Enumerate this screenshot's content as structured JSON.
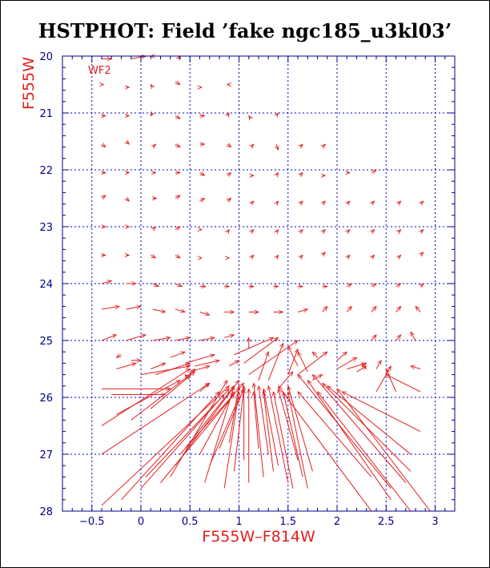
{
  "chart_data": {
    "type": "vector-field",
    "title": "HSTPHOT: Field ’fake ngc185_u3kl03’",
    "panel_label": "WF2",
    "xlabel": "F555W–F814W",
    "ylabel": "F555W",
    "xlim": [
      -0.8,
      3.2
    ],
    "ylim": [
      28,
      20
    ],
    "y_inverted": true,
    "grid": true,
    "x_ticks": [
      -0.5,
      0,
      0.5,
      1,
      1.5,
      2,
      2.5,
      3
    ],
    "x_tick_labels": [
      "−0.5",
      "0",
      "0.5",
      "1",
      "1.5",
      "2",
      "2.5",
      "3"
    ],
    "y_ticks": [
      20,
      21,
      22,
      23,
      24,
      25,
      26,
      27,
      28
    ],
    "y_tick_labels": [
      "20",
      "21",
      "22",
      "23",
      "24",
      "25",
      "26",
      "27",
      "28"
    ],
    "colors": {
      "axis": "#00008b",
      "grid": "#0000cd",
      "vectors": "#e02020",
      "labels": "#e02020"
    },
    "vectors_note": "each vector: [x_start, y_start, x_end, y_end] in data units (color, magnitude)",
    "vectors": [
      [
        -0.4,
        20.05,
        -0.3,
        20.05
      ],
      [
        -0.1,
        20.05,
        0.05,
        20.0
      ],
      [
        0.12,
        20.0,
        0.1,
        20.0
      ],
      [
        0.38,
        20.05,
        0.4,
        20.0
      ],
      [
        -0.4,
        20.5,
        -0.38,
        20.5
      ],
      [
        -0.15,
        20.55,
        -0.12,
        20.55
      ],
      [
        0.12,
        20.55,
        0.1,
        20.5
      ],
      [
        0.35,
        20.45,
        0.4,
        20.5
      ],
      [
        0.6,
        20.55,
        0.62,
        20.55
      ],
      [
        0.9,
        20.5,
        0.88,
        20.5
      ],
      [
        -0.4,
        21.05,
        -0.36,
        21.05
      ],
      [
        -0.15,
        21.05,
        -0.12,
        21.05
      ],
      [
        0.12,
        21.0,
        0.1,
        21.05
      ],
      [
        0.35,
        21.05,
        0.4,
        21.1
      ],
      [
        0.6,
        21.05,
        0.65,
        21.05
      ],
      [
        0.88,
        21.05,
        0.9,
        21.0
      ],
      [
        1.12,
        21.1,
        1.1,
        21.05
      ],
      [
        1.38,
        21.05,
        1.4,
        21.0
      ],
      [
        -0.4,
        21.55,
        -0.36,
        21.6
      ],
      [
        -0.15,
        21.5,
        -0.12,
        21.55
      ],
      [
        0.12,
        21.6,
        0.15,
        21.55
      ],
      [
        0.35,
        21.55,
        0.4,
        21.6
      ],
      [
        0.6,
        21.55,
        0.65,
        21.55
      ],
      [
        0.88,
        21.55,
        0.92,
        21.6
      ],
      [
        1.12,
        21.6,
        1.15,
        21.55
      ],
      [
        1.38,
        21.55,
        1.4,
        21.65
      ],
      [
        1.62,
        21.6,
        1.65,
        21.55
      ],
      [
        1.85,
        21.6,
        1.88,
        21.55
      ],
      [
        -0.4,
        22.05,
        -0.36,
        22.05
      ],
      [
        -0.15,
        22.05,
        -0.12,
        22.05
      ],
      [
        0.12,
        22.05,
        0.15,
        22.05
      ],
      [
        0.35,
        22.05,
        0.4,
        22.05
      ],
      [
        0.6,
        22.05,
        0.65,
        22.1
      ],
      [
        0.88,
        22.1,
        0.92,
        22.05
      ],
      [
        1.12,
        22.1,
        1.15,
        22.1
      ],
      [
        1.38,
        22.1,
        1.4,
        22.05
      ],
      [
        1.62,
        22.1,
        1.65,
        22.05
      ],
      [
        1.85,
        22.1,
        1.88,
        22.1
      ],
      [
        2.1,
        22.05,
        2.13,
        22.05
      ],
      [
        2.35,
        22.05,
        2.4,
        22.0
      ],
      [
        -0.4,
        22.5,
        -0.36,
        22.45
      ],
      [
        -0.15,
        22.5,
        -0.12,
        22.55
      ],
      [
        0.12,
        22.5,
        0.16,
        22.5
      ],
      [
        0.35,
        22.5,
        0.4,
        22.45
      ],
      [
        0.6,
        22.55,
        0.65,
        22.5
      ],
      [
        0.88,
        22.55,
        0.92,
        22.5
      ],
      [
        1.12,
        22.6,
        1.15,
        22.55
      ],
      [
        1.38,
        22.6,
        1.4,
        22.55
      ],
      [
        1.62,
        22.6,
        1.65,
        22.55
      ],
      [
        1.85,
        22.6,
        1.88,
        22.55
      ],
      [
        2.1,
        22.6,
        2.13,
        22.55
      ],
      [
        2.35,
        22.6,
        2.38,
        22.55
      ],
      [
        2.62,
        22.6,
        2.65,
        22.55
      ],
      [
        2.85,
        22.6,
        2.88,
        22.55
      ],
      [
        -0.4,
        23.0,
        -0.36,
        23.0
      ],
      [
        -0.15,
        23.0,
        -0.12,
        23.0
      ],
      [
        0.12,
        23.05,
        0.15,
        23.0
      ],
      [
        0.35,
        23.05,
        0.4,
        23.0
      ],
      [
        0.6,
        23.05,
        0.62,
        23.05
      ],
      [
        0.88,
        23.1,
        0.9,
        23.05
      ],
      [
        1.12,
        23.1,
        1.15,
        23.05
      ],
      [
        1.38,
        23.1,
        1.4,
        23.05
      ],
      [
        1.62,
        23.1,
        1.65,
        23.05
      ],
      [
        1.85,
        23.1,
        1.88,
        23.05
      ],
      [
        2.1,
        23.1,
        2.13,
        23.05
      ],
      [
        2.35,
        23.1,
        2.38,
        23.05
      ],
      [
        2.62,
        23.1,
        2.65,
        23.05
      ],
      [
        2.85,
        23.1,
        2.88,
        23.05
      ],
      [
        -0.4,
        23.5,
        -0.36,
        23.5
      ],
      [
        -0.15,
        23.5,
        -0.12,
        23.5
      ],
      [
        0.1,
        23.5,
        0.15,
        23.55
      ],
      [
        0.35,
        23.5,
        0.4,
        23.55
      ],
      [
        0.6,
        23.55,
        0.62,
        23.55
      ],
      [
        0.88,
        23.55,
        0.9,
        23.55
      ],
      [
        1.12,
        23.55,
        1.15,
        23.5
      ],
      [
        1.38,
        23.55,
        1.4,
        23.5
      ],
      [
        1.62,
        23.55,
        1.65,
        23.5
      ],
      [
        1.85,
        23.5,
        1.88,
        23.45
      ],
      [
        2.1,
        23.55,
        2.13,
        23.5
      ],
      [
        2.35,
        23.55,
        2.38,
        23.5
      ],
      [
        2.62,
        23.55,
        2.65,
        23.5
      ],
      [
        2.85,
        23.5,
        2.88,
        23.45
      ],
      [
        -0.4,
        24.0,
        -0.3,
        23.95
      ],
      [
        -0.15,
        24.0,
        -0.05,
        24.0
      ],
      [
        0.12,
        24.0,
        0.18,
        24.05
      ],
      [
        0.35,
        24.0,
        0.42,
        24.05
      ],
      [
        0.6,
        24.05,
        0.66,
        24.05
      ],
      [
        0.85,
        24.05,
        0.9,
        24.05
      ],
      [
        1.1,
        24.05,
        1.15,
        24.05
      ],
      [
        1.35,
        24.05,
        1.4,
        24.05
      ],
      [
        1.6,
        24.05,
        1.65,
        24.05
      ],
      [
        1.85,
        24.05,
        1.9,
        24.05
      ],
      [
        2.1,
        24.05,
        2.15,
        24.0
      ],
      [
        2.35,
        24.05,
        2.4,
        24.0
      ],
      [
        2.6,
        24.05,
        2.65,
        24.0
      ],
      [
        2.85,
        24.05,
        2.88,
        24.0
      ],
      [
        -0.4,
        24.45,
        -0.22,
        24.4
      ],
      [
        -0.15,
        24.45,
        -0.0,
        24.4
      ],
      [
        0.12,
        24.45,
        0.25,
        24.5
      ],
      [
        0.35,
        24.45,
        0.45,
        24.5
      ],
      [
        0.6,
        24.5,
        0.7,
        24.55
      ],
      [
        0.85,
        24.5,
        0.95,
        24.5
      ],
      [
        1.1,
        24.5,
        1.2,
        24.5
      ],
      [
        1.35,
        24.5,
        1.45,
        24.5
      ],
      [
        1.6,
        24.5,
        1.7,
        24.45
      ],
      [
        1.85,
        24.5,
        1.9,
        24.4
      ],
      [
        2.1,
        24.5,
        2.15,
        24.4
      ],
      [
        2.35,
        24.5,
        2.4,
        24.4
      ],
      [
        2.6,
        24.5,
        2.65,
        24.4
      ],
      [
        2.85,
        24.5,
        2.8,
        24.4
      ],
      [
        -0.4,
        25.0,
        -0.25,
        24.9
      ],
      [
        -0.15,
        25.0,
        0.05,
        24.9
      ],
      [
        0.12,
        25.0,
        0.3,
        24.95
      ],
      [
        0.35,
        25.0,
        0.5,
        24.95
      ],
      [
        0.6,
        25.0,
        0.75,
        24.95
      ],
      [
        0.85,
        24.95,
        0.95,
        24.9
      ],
      [
        2.35,
        25.0,
        2.4,
        24.9
      ],
      [
        2.6,
        25.0,
        2.65,
        24.9
      ],
      [
        2.8,
        25.0,
        2.75,
        24.85
      ],
      [
        -0.4,
        26.5,
        0.5,
        25.5
      ],
      [
        -0.1,
        26.4,
        0.5,
        25.6
      ],
      [
        0.1,
        26.2,
        0.55,
        25.55
      ],
      [
        -0.25,
        26.3,
        0.4,
        25.7
      ],
      [
        -0.2,
        25.25,
        -0.25,
        25.3
      ],
      [
        -0.25,
        25.5,
        -0.05,
        25.4
      ],
      [
        -0.1,
        25.35,
        0.0,
        25.35
      ],
      [
        0.0,
        25.6,
        0.5,
        25.45
      ],
      [
        0.15,
        25.6,
        0.5,
        25.4
      ],
      [
        0.5,
        25.6,
        0.55,
        25.5
      ],
      [
        0.5,
        25.7,
        0.45,
        25.6
      ],
      [
        -0.4,
        25.85,
        0.3,
        25.85
      ],
      [
        -0.3,
        25.95,
        0.25,
        25.95
      ],
      [
        0.6,
        25.9,
        0.7,
        25.75
      ],
      [
        -0.4,
        27.0,
        0.7,
        25.75
      ],
      [
        -0.4,
        27.9,
        0.9,
        25.8
      ],
      [
        -0.2,
        27.8,
        0.8,
        25.9
      ],
      [
        0.0,
        27.6,
        0.9,
        25.85
      ],
      [
        0.05,
        27.4,
        0.85,
        25.95
      ],
      [
        0.2,
        27.5,
        0.95,
        25.95
      ],
      [
        0.3,
        27.4,
        0.88,
        25.7
      ],
      [
        0.35,
        27.2,
        1.0,
        25.7
      ],
      [
        0.4,
        27.0,
        1.05,
        25.75
      ],
      [
        0.45,
        26.9,
        0.95,
        25.8
      ],
      [
        0.65,
        27.5,
        0.95,
        25.8
      ],
      [
        0.6,
        27.0,
        0.95,
        25.9
      ],
      [
        0.7,
        27.2,
        1.0,
        26.0
      ],
      [
        0.85,
        27.6,
        1.0,
        25.9
      ],
      [
        0.8,
        26.9,
        1.05,
        25.85
      ],
      [
        0.9,
        26.8,
        1.0,
        25.8
      ],
      [
        0.95,
        27.3,
        1.05,
        25.85
      ],
      [
        1.05,
        27.1,
        1.05,
        25.8
      ],
      [
        1.1,
        27.5,
        1.1,
        25.85
      ],
      [
        1.2,
        26.9,
        1.15,
        25.9
      ],
      [
        1.25,
        27.4,
        1.15,
        25.75
      ],
      [
        1.3,
        27.0,
        1.2,
        25.8
      ],
      [
        1.35,
        27.3,
        1.25,
        25.9
      ],
      [
        1.4,
        27.2,
        1.25,
        25.85
      ],
      [
        1.5,
        27.5,
        1.3,
        25.8
      ],
      [
        1.55,
        27.6,
        1.35,
        25.9
      ],
      [
        1.6,
        27.1,
        1.4,
        25.85
      ],
      [
        1.65,
        27.4,
        1.45,
        25.9
      ],
      [
        1.7,
        27.6,
        1.5,
        25.9
      ],
      [
        1.75,
        27.3,
        1.5,
        25.8
      ],
      [
        2.35,
        28.0,
        1.4,
        25.8
      ],
      [
        2.35,
        27.4,
        1.6,
        25.9
      ],
      [
        2.55,
        27.8,
        1.7,
        25.7
      ],
      [
        2.55,
        27.6,
        1.6,
        25.6
      ],
      [
        2.75,
        28.0,
        1.8,
        25.9
      ],
      [
        2.7,
        27.5,
        1.75,
        25.6
      ],
      [
        2.75,
        27.3,
        1.85,
        25.75
      ],
      [
        2.75,
        27.0,
        1.9,
        25.8
      ],
      [
        2.95,
        28.0,
        2.0,
        25.85
      ],
      [
        2.85,
        26.6,
        2.05,
        25.9
      ],
      [
        1.1,
        25.6,
        1.6,
        25.0
      ],
      [
        1.3,
        25.7,
        1.45,
        25.05
      ],
      [
        1.5,
        25.6,
        1.6,
        25.15
      ],
      [
        1.2,
        25.7,
        1.3,
        25.2
      ],
      [
        1.6,
        25.45,
        1.5,
        25.1
      ],
      [
        1.7,
        25.55,
        1.6,
        25.2
      ],
      [
        1.6,
        25.6,
        1.9,
        25.2
      ],
      [
        1.4,
        25.85,
        1.55,
        25.55
      ],
      [
        1.75,
        25.7,
        1.85,
        25.6
      ],
      [
        2.0,
        25.5,
        2.2,
        25.3
      ],
      [
        2.1,
        25.5,
        2.3,
        25.4
      ],
      [
        2.2,
        25.55,
        2.3,
        25.45
      ],
      [
        2.4,
        25.5,
        2.45,
        25.35
      ],
      [
        2.4,
        25.9,
        2.55,
        25.45
      ],
      [
        2.6,
        25.9,
        2.5,
        25.5
      ],
      [
        2.85,
        25.5,
        2.75,
        25.45
      ],
      [
        2.85,
        25.9,
        2.5,
        25.6
      ],
      [
        2.3,
        25.5,
        2.25,
        25.4
      ],
      [
        1.05,
        25.4,
        1.4,
        24.95
      ],
      [
        0.95,
        25.25,
        1.35,
        24.95
      ],
      [
        1.1,
        25.15,
        1.1,
        24.95
      ],
      [
        1.8,
        25.3,
        1.75,
        25.2
      ],
      [
        2.0,
        25.35,
        2.1,
        25.2
      ],
      [
        0.5,
        25.55,
        0.7,
        25.45
      ],
      [
        0.55,
        25.45,
        0.8,
        25.35
      ],
      [
        0.45,
        25.4,
        0.75,
        25.25
      ],
      [
        0.9,
        25.45,
        1.0,
        25.35
      ],
      [
        0.3,
        25.3,
        0.45,
        25.2
      ],
      [
        0.1,
        25.5,
        0.25,
        25.4
      ]
    ]
  }
}
